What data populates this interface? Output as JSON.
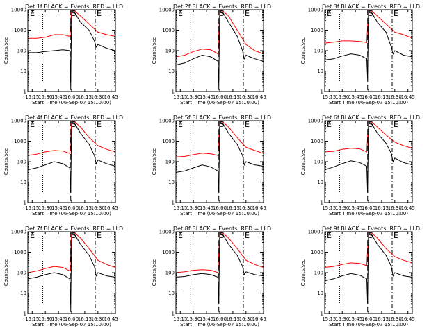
{
  "figure": {
    "colors": {
      "events": "#000000",
      "lld": "#ff0000",
      "axes": "#000000",
      "background": "#ffffff"
    },
    "x_tick_labels": [
      "15:15",
      "15:30",
      "15:45",
      "16:00",
      "16:15",
      "16:30",
      "16:45"
    ],
    "y_tick_labels": [
      "1",
      "10",
      "100",
      "1000",
      "10000"
    ],
    "xlabel": "Start Time (06-Sep-07 15:10:00)",
    "ylabel": "Counts/sec",
    "markers": [
      "E",
      "S",
      "E"
    ]
  },
  "chart_data": [
    {
      "type": "line",
      "title": "Det 1f BLACK = Events, RED = LLD",
      "xlabel": "Start Time (06-Sep-07 15:10:00)",
      "ylabel": "Counts/sec",
      "yscale": "log",
      "xlim": [
        "15:10",
        "16:50"
      ],
      "ylim": [
        1,
        10000
      ],
      "dotted_line_time": "15:27",
      "dashed_line_time": "15:59",
      "dashdot_line_time": "16:27",
      "series": [
        {
          "name": "Events",
          "color": "#000000",
          "x": [
            "15:10",
            "15:20",
            "15:30",
            "15:40",
            "15:50",
            "15:58",
            "15:59",
            "16:00",
            "16:03",
            "16:10",
            "16:20",
            "16:26",
            "16:28",
            "16:30",
            "16:40",
            "16:50"
          ],
          "values": [
            80,
            80,
            90,
            100,
            110,
            100,
            2,
            10000,
            8000,
            2500,
            1000,
            300,
            150,
            200,
            130,
            100
          ]
        },
        {
          "name": "LLD",
          "color": "#ff0000",
          "x": [
            "15:10",
            "15:20",
            "15:30",
            "15:40",
            "15:50",
            "15:58",
            "16:00",
            "16:03",
            "16:10",
            "16:20",
            "16:30",
            "16:40",
            "16:50"
          ],
          "values": [
            400,
            400,
            450,
            600,
            600,
            500,
            10000,
            9000,
            5000,
            2000,
            800,
            600,
            500
          ]
        }
      ]
    },
    {
      "type": "line",
      "title": "Det 2f BLACK = Events, RED = LLD",
      "xlabel": "Start Time (06-Sep-07 15:10:00)",
      "ylabel": "Counts/sec",
      "yscale": "log",
      "xlim": [
        "15:10",
        "16:50"
      ],
      "ylim": [
        1,
        10000
      ],
      "dotted_line_time": "15:27",
      "dashed_line_time": "15:59",
      "dashdot_line_time": "16:27",
      "series": [
        {
          "name": "Events",
          "color": "#000000",
          "x": [
            "15:10",
            "15:20",
            "15:30",
            "15:40",
            "15:50",
            "15:58",
            "15:59",
            "16:00",
            "16:03",
            "16:10",
            "16:20",
            "16:26",
            "16:28",
            "16:30",
            "16:40",
            "16:50"
          ],
          "values": [
            20,
            25,
            40,
            60,
            50,
            30,
            2,
            10000,
            8000,
            2500,
            500,
            100,
            40,
            60,
            40,
            30
          ]
        },
        {
          "name": "LLD",
          "color": "#ff0000",
          "x": [
            "15:10",
            "15:20",
            "15:30",
            "15:40",
            "15:50",
            "15:58",
            "16:00",
            "16:03",
            "16:10",
            "16:20",
            "16:30",
            "16:40",
            "16:50"
          ],
          "values": [
            50,
            60,
            90,
            120,
            110,
            70,
            10000,
            9000,
            5000,
            1000,
            200,
            100,
            70
          ]
        }
      ]
    },
    {
      "type": "line",
      "title": "Det 3f BLACK = Events, RED = LLD",
      "xlabel": "Start Time (06-Sep-07 15:10:00)",
      "ylabel": "Counts/sec",
      "yscale": "log",
      "xlim": [
        "15:10",
        "16:50"
      ],
      "ylim": [
        1,
        10000
      ],
      "dotted_line_time": "15:27",
      "dashed_line_time": "15:59",
      "dashdot_line_time": "16:27",
      "series": [
        {
          "name": "Events",
          "color": "#000000",
          "x": [
            "15:10",
            "15:20",
            "15:30",
            "15:40",
            "15:50",
            "15:58",
            "15:59",
            "16:00",
            "16:03",
            "16:10",
            "16:20",
            "16:26",
            "16:28",
            "16:30",
            "16:40",
            "16:50"
          ],
          "values": [
            35,
            40,
            55,
            70,
            60,
            40,
            4,
            10000,
            8000,
            2500,
            800,
            150,
            70,
            100,
            60,
            50
          ]
        },
        {
          "name": "LLD",
          "color": "#ff0000",
          "x": [
            "15:10",
            "15:20",
            "15:30",
            "15:40",
            "15:50",
            "15:58",
            "16:00",
            "16:03",
            "16:10",
            "16:20",
            "16:30",
            "16:40",
            "16:50"
          ],
          "values": [
            230,
            260,
            300,
            300,
            280,
            250,
            10000,
            9000,
            5000,
            2000,
            800,
            600,
            400
          ]
        }
      ]
    },
    {
      "type": "line",
      "title": "Det 4f BLACK = Events, RED = LLD",
      "xlabel": "Start Time (06-Sep-07 15:10:00)",
      "ylabel": "Counts/sec",
      "yscale": "log",
      "xlim": [
        "15:10",
        "16:50"
      ],
      "ylim": [
        1,
        10000
      ],
      "dotted_line_time": "15:27",
      "dashed_line_time": "15:59",
      "dashdot_line_time": "16:27",
      "series": [
        {
          "name": "Events",
          "color": "#000000",
          "x": [
            "15:10",
            "15:20",
            "15:30",
            "15:40",
            "15:50",
            "15:58",
            "15:59",
            "16:00",
            "16:03",
            "16:10",
            "16:20",
            "16:26",
            "16:28",
            "16:30",
            "16:40",
            "16:50"
          ],
          "values": [
            40,
            50,
            70,
            100,
            80,
            50,
            3,
            10000,
            8000,
            2500,
            700,
            200,
            80,
            120,
            80,
            60
          ]
        },
        {
          "name": "LLD",
          "color": "#ff0000",
          "x": [
            "15:10",
            "15:20",
            "15:30",
            "15:40",
            "15:50",
            "15:58",
            "16:00",
            "16:03",
            "16:10",
            "16:20",
            "16:30",
            "16:40",
            "16:50"
          ],
          "values": [
            200,
            230,
            300,
            350,
            330,
            250,
            10000,
            9000,
            5000,
            1500,
            600,
            400,
            300
          ]
        }
      ]
    },
    {
      "type": "line",
      "title": "Det 5f BLACK = Events, RED = LLD",
      "xlabel": "Start Time (06-Sep-07 15:10:00)",
      "ylabel": "Counts/sec",
      "yscale": "log",
      "xlim": [
        "15:10",
        "16:50"
      ],
      "ylim": [
        1,
        10000
      ],
      "dotted_line_time": "15:27",
      "dashed_line_time": "15:59",
      "dashdot_line_time": "16:27",
      "series": [
        {
          "name": "Events",
          "color": "#000000",
          "x": [
            "15:10",
            "15:20",
            "15:30",
            "15:40",
            "15:50",
            "15:58",
            "15:59",
            "16:00",
            "16:03",
            "16:10",
            "16:20",
            "16:26",
            "16:28",
            "16:30",
            "16:40",
            "16:50"
          ],
          "values": [
            30,
            35,
            50,
            70,
            55,
            35,
            3,
            10000,
            8000,
            2500,
            700,
            200,
            70,
            100,
            70,
            60
          ]
        },
        {
          "name": "LLD",
          "color": "#ff0000",
          "x": [
            "15:10",
            "15:20",
            "15:30",
            "15:40",
            "15:50",
            "15:58",
            "16:00",
            "16:03",
            "16:10",
            "16:20",
            "16:30",
            "16:40",
            "16:50"
          ],
          "values": [
            170,
            180,
            220,
            260,
            240,
            200,
            10000,
            9000,
            5000,
            1500,
            500,
            350,
            250
          ]
        }
      ]
    },
    {
      "type": "line",
      "title": "Det 6f BLACK = Events, RED = LLD",
      "xlabel": "Start Time (06-Sep-07 15:10:00)",
      "ylabel": "Counts/sec",
      "yscale": "log",
      "xlim": [
        "15:10",
        "16:50"
      ],
      "ylim": [
        1,
        10000
      ],
      "dotted_line_time": "15:27",
      "dashed_line_time": "15:59",
      "dashdot_line_time": "16:27",
      "series": [
        {
          "name": "Events",
          "color": "#000000",
          "x": [
            "15:10",
            "15:20",
            "15:30",
            "15:40",
            "15:50",
            "15:58",
            "15:59",
            "16:00",
            "16:03",
            "16:10",
            "16:20",
            "16:26",
            "16:28",
            "16:30",
            "16:40",
            "16:50"
          ],
          "values": [
            40,
            55,
            80,
            110,
            90,
            60,
            3,
            10000,
            8000,
            2500,
            800,
            250,
            100,
            150,
            90,
            70
          ]
        },
        {
          "name": "LLD",
          "color": "#ff0000",
          "x": [
            "15:10",
            "15:20",
            "15:30",
            "15:40",
            "15:50",
            "15:58",
            "16:00",
            "16:03",
            "16:10",
            "16:20",
            "16:30",
            "16:40",
            "16:50"
          ],
          "values": [
            300,
            320,
            400,
            450,
            420,
            300,
            10000,
            9000,
            5000,
            2000,
            900,
            600,
            450
          ]
        }
      ]
    },
    {
      "type": "line",
      "title": "Det 7f BLACK = Events, RED = LLD",
      "xlabel": "Start Time (06-Sep-07 15:10:00)",
      "ylabel": "Counts/sec",
      "yscale": "log",
      "xlim": [
        "15:10",
        "16:50"
      ],
      "ylim": [
        1,
        10000
      ],
      "dotted_line_time": "15:27",
      "dashed_line_time": "15:59",
      "dashdot_line_time": "16:27",
      "series": [
        {
          "name": "Events",
          "color": "#000000",
          "x": [
            "15:10",
            "15:20",
            "15:30",
            "15:40",
            "15:50",
            "15:58",
            "15:59",
            "16:00",
            "16:03",
            "16:10",
            "16:20",
            "16:26",
            "16:28",
            "16:30",
            "16:40",
            "16:50"
          ],
          "values": [
            50,
            60,
            80,
            100,
            80,
            50,
            2,
            10000,
            8000,
            2500,
            700,
            200,
            70,
            100,
            70,
            60
          ]
        },
        {
          "name": "LLD",
          "color": "#ff0000",
          "x": [
            "15:10",
            "15:20",
            "15:30",
            "15:40",
            "15:50",
            "15:58",
            "16:00",
            "16:03",
            "16:10",
            "16:20",
            "16:30",
            "16:40",
            "16:50"
          ],
          "values": [
            100,
            120,
            160,
            200,
            180,
            120,
            10000,
            9000,
            5000,
            1500,
            400,
            250,
            180
          ]
        }
      ]
    },
    {
      "type": "line",
      "title": "Det 8f BLACK = Events, RED = LLD",
      "xlabel": "Start Time (06-Sep-07 15:10:00)",
      "ylabel": "Counts/sec",
      "yscale": "log",
      "xlim": [
        "15:10",
        "16:50"
      ],
      "ylim": [
        1,
        10000
      ],
      "dotted_line_time": "15:27",
      "dashed_line_time": "15:59",
      "dashdot_line_time": "16:27",
      "series": [
        {
          "name": "Events",
          "color": "#000000",
          "x": [
            "15:10",
            "15:20",
            "15:30",
            "15:40",
            "15:50",
            "15:58",
            "15:59",
            "16:00",
            "16:03",
            "16:10",
            "16:20",
            "16:26",
            "16:28",
            "16:30",
            "16:40",
            "16:50"
          ],
          "values": [
            60,
            65,
            80,
            90,
            80,
            60,
            3,
            10000,
            8000,
            2500,
            700,
            200,
            80,
            110,
            80,
            70
          ]
        },
        {
          "name": "LLD",
          "color": "#ff0000",
          "x": [
            "15:10",
            "15:20",
            "15:30",
            "15:40",
            "15:50",
            "15:58",
            "16:00",
            "16:03",
            "16:10",
            "16:20",
            "16:30",
            "16:40",
            "16:50"
          ],
          "values": [
            100,
            110,
            130,
            140,
            130,
            100,
            10000,
            9000,
            5000,
            1500,
            400,
            250,
            180
          ]
        }
      ]
    },
    {
      "type": "line",
      "title": "Det 9f BLACK = Events, RED = LLD",
      "xlabel": "Start Time (06-Sep-07 15:10:00)",
      "ylabel": "Counts/sec",
      "yscale": "log",
      "xlim": [
        "15:10",
        "16:50"
      ],
      "ylim": [
        1,
        10000
      ],
      "dotted_line_time": "15:27",
      "dashed_line_time": "15:59",
      "dashdot_line_time": "16:27",
      "series": [
        {
          "name": "Events",
          "color": "#000000",
          "x": [
            "15:10",
            "15:20",
            "15:30",
            "15:40",
            "15:50",
            "15:58",
            "15:59",
            "16:00",
            "16:03",
            "16:10",
            "16:20",
            "16:26",
            "16:28",
            "16:30",
            "16:40",
            "16:50"
          ],
          "values": [
            40,
            50,
            70,
            90,
            75,
            50,
            3,
            10000,
            8000,
            2500,
            700,
            200,
            70,
            100,
            70,
            60
          ]
        },
        {
          "name": "LLD",
          "color": "#ff0000",
          "x": [
            "15:10",
            "15:20",
            "15:30",
            "15:40",
            "15:50",
            "15:58",
            "16:00",
            "16:03",
            "16:10",
            "16:20",
            "16:30",
            "16:40",
            "16:50"
          ],
          "values": [
            180,
            200,
            250,
            300,
            280,
            220,
            10000,
            9000,
            5000,
            1500,
            600,
            400,
            300
          ]
        }
      ]
    }
  ]
}
